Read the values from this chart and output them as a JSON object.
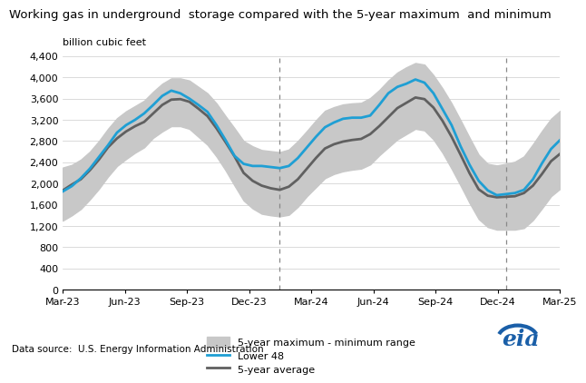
{
  "title": "Working gas in underground  storage compared with the 5-year maximum  and minimum",
  "ylabel": "billion cubic feet",
  "datasource": "Data source:  U.S. Energy Information Administration",
  "ylim": [
    0,
    4400
  ],
  "yticks": [
    0,
    400,
    800,
    1200,
    1600,
    2000,
    2400,
    2800,
    3200,
    3600,
    4000,
    4400
  ],
  "xtick_labels": [
    "Mar-23",
    "Jun-23",
    "Sep-23",
    "Dec-23",
    "Mar-24",
    "Jun-24",
    "Sep-24",
    "Dec-24",
    "Mar-25"
  ],
  "lower48": [
    1850,
    1950,
    2100,
    2280,
    2500,
    2720,
    2960,
    3100,
    3200,
    3320,
    3480,
    3650,
    3750,
    3700,
    3600,
    3480,
    3350,
    3100,
    2820,
    2520,
    2370,
    2330,
    2330,
    2310,
    2290,
    2330,
    2480,
    2680,
    2880,
    3060,
    3150,
    3220,
    3240,
    3240,
    3280,
    3480,
    3700,
    3820,
    3880,
    3960,
    3900,
    3700,
    3400,
    3100,
    2700,
    2350,
    2050,
    1870,
    1780,
    1800,
    1820,
    1880,
    2080,
    2380,
    2650,
    2820
  ],
  "avg5yr": [
    1870,
    1980,
    2080,
    2250,
    2450,
    2680,
    2850,
    2980,
    3080,
    3160,
    3320,
    3480,
    3580,
    3590,
    3540,
    3410,
    3270,
    3040,
    2780,
    2510,
    2200,
    2050,
    1960,
    1910,
    1880,
    1940,
    2080,
    2280,
    2480,
    2660,
    2740,
    2790,
    2820,
    2840,
    2930,
    3080,
    3250,
    3420,
    3520,
    3620,
    3590,
    3430,
    3180,
    2880,
    2540,
    2190,
    1890,
    1770,
    1740,
    1750,
    1760,
    1820,
    1960,
    2180,
    2420,
    2560
  ],
  "max5yr": [
    2300,
    2350,
    2450,
    2600,
    2800,
    3030,
    3230,
    3360,
    3460,
    3560,
    3730,
    3880,
    3980,
    3980,
    3940,
    3820,
    3700,
    3510,
    3270,
    3040,
    2800,
    2700,
    2630,
    2610,
    2590,
    2640,
    2800,
    2990,
    3190,
    3370,
    3440,
    3490,
    3510,
    3520,
    3610,
    3760,
    3940,
    4090,
    4190,
    4270,
    4240,
    4040,
    3790,
    3510,
    3190,
    2860,
    2540,
    2370,
    2340,
    2370,
    2410,
    2510,
    2740,
    2990,
    3220,
    3370
  ],
  "min5yr": [
    1300,
    1400,
    1520,
    1700,
    1900,
    2130,
    2330,
    2460,
    2580,
    2680,
    2860,
    2980,
    3080,
    3080,
    3030,
    2880,
    2730,
    2510,
    2250,
    1960,
    1680,
    1530,
    1430,
    1400,
    1380,
    1410,
    1560,
    1760,
    1930,
    2100,
    2180,
    2230,
    2260,
    2280,
    2360,
    2530,
    2680,
    2830,
    2930,
    3030,
    3000,
    2830,
    2580,
    2280,
    1960,
    1630,
    1330,
    1180,
    1130,
    1130,
    1130,
    1160,
    1310,
    1530,
    1760,
    1900
  ],
  "range_color": "#c8c8c8",
  "lower48_color": "#1f9fd4",
  "avg5yr_color": "#606060",
  "lower48_lw": 2.0,
  "avg5yr_lw": 2.0,
  "vline_color": "#888888",
  "vline_positions": [
    24,
    49
  ]
}
